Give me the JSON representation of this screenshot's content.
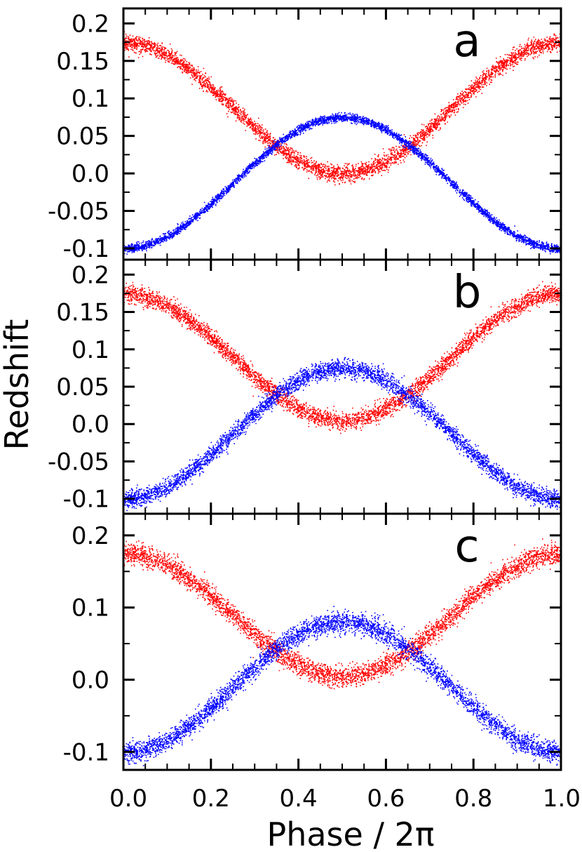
{
  "chart_data": {
    "type": "scatter",
    "xlabel": "Phase / 2π",
    "ylabel": "Redshift",
    "xlim": [
      0.0,
      1.0
    ],
    "x_ticks": [
      0.0,
      0.2,
      0.4,
      0.6,
      0.8,
      1.0
    ],
    "x_tick_labels": [
      "0.0",
      "0.2",
      "0.4",
      "0.6",
      "0.8",
      "1.0"
    ],
    "grid": false,
    "legend": "none",
    "series_colors": {
      "red": "#ff0000",
      "blue": "#0000ff"
    },
    "panels": [
      {
        "label": "a",
        "ylim": [
          -0.115,
          0.22
        ],
        "y_ticks": [
          -0.1,
          -0.05,
          0.0,
          0.05,
          0.1,
          0.15,
          0.2
        ],
        "y_tick_labels": [
          "-0.1",
          "-0.05",
          "0.0",
          "0.05",
          "0.1",
          "0.15",
          "0.2"
        ],
        "series": [
          {
            "color": "red",
            "x": [
              0.0,
              0.25,
              0.5,
              0.75,
              1.0
            ],
            "y": [
              0.175,
              0.09,
              0.0,
              0.09,
              0.175
            ],
            "scatter": 0.012
          },
          {
            "color": "blue",
            "x": [
              0.0,
              0.25,
              0.5,
              0.75,
              1.0
            ],
            "y": [
              -0.1,
              -0.015,
              0.075,
              -0.015,
              -0.1
            ],
            "scatter": 0.006
          }
        ]
      },
      {
        "label": "b",
        "ylim": [
          -0.12,
          0.22
        ],
        "y_ticks": [
          -0.1,
          -0.05,
          0.0,
          0.05,
          0.1,
          0.15,
          0.2
        ],
        "y_tick_labels": [
          "-0.1",
          "-0.05",
          "0.0",
          "0.05",
          "0.1",
          "0.15",
          "0.2"
        ],
        "series": [
          {
            "color": "red",
            "x": [
              0.0,
              0.25,
              0.5,
              0.75,
              1.0
            ],
            "y": [
              0.175,
              0.09,
              0.005,
              0.09,
              0.175
            ],
            "scatter": 0.013
          },
          {
            "color": "blue",
            "x": [
              0.0,
              0.25,
              0.5,
              0.75,
              1.0
            ],
            "y": [
              -0.1,
              -0.015,
              0.075,
              -0.015,
              -0.1
            ],
            "scatter": 0.013
          }
        ]
      },
      {
        "label": "c",
        "ylim": [
          -0.125,
          0.23
        ],
        "y_ticks": [
          -0.1,
          0.0,
          0.1,
          0.2
        ],
        "y_tick_labels": [
          "-0.1",
          "0.0",
          "0.1",
          "0.2"
        ],
        "series": [
          {
            "color": "red",
            "x": [
              0.0,
              0.25,
              0.5,
              0.75,
              1.0
            ],
            "y": [
              0.175,
              0.09,
              0.005,
              0.09,
              0.175
            ],
            "scatter": 0.016
          },
          {
            "color": "blue",
            "x": [
              0.0,
              0.25,
              0.5,
              0.75,
              1.0
            ],
            "y": [
              -0.1,
              -0.015,
              0.08,
              -0.015,
              -0.1
            ],
            "scatter": 0.016
          }
        ]
      }
    ]
  }
}
